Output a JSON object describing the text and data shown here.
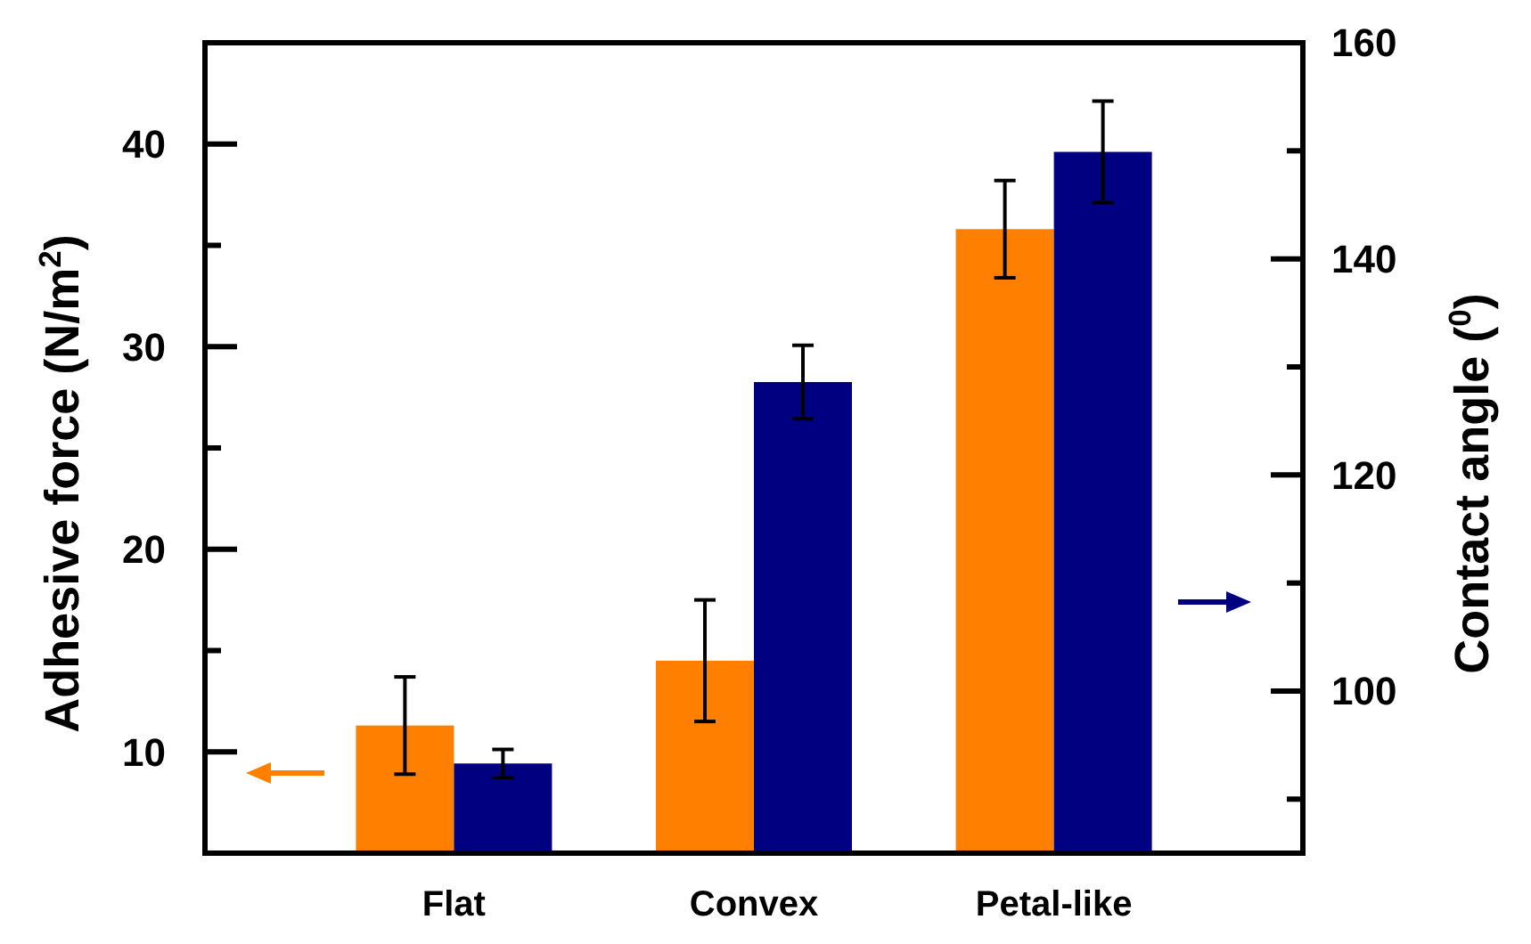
{
  "chart_data": {
    "type": "bar",
    "categories": [
      "Flat",
      "Convex",
      "Petal-like"
    ],
    "ylabel": "Adhesive force (N/m$^{2}$)",
    "y2label": "Contact angle ($^{0}$)",
    "series": [
      {
        "color": "#ff7f00",
        "values": [
          11.3,
          14.5,
          35.8
        ],
        "errors": [
          2.4,
          3,
          2.4
        ]
      },
      {
        "color": "#000080",
        "values": [
          93.3,
          128.6,
          149.9
        ],
        "errors": [
          1.3,
          3.4,
          4.7
        ],
        "axis": "y2"
      }
    ],
    "ylim": [
      5,
      45
    ],
    "yticks": [
      10,
      {
        "value": 15,
        "label": null
      },
      20,
      {
        "value": 25,
        "label": null
      },
      30,
      {
        "value": 35,
        "label": null
      },
      40
    ],
    "y2lim": [
      85,
      160
    ],
    "y2ticks": [
      {
        "value": 90,
        "label": null
      },
      100,
      {
        "value": 110,
        "label": null
      },
      120,
      {
        "value": 130,
        "label": null
      },
      140,
      {
        "value": 150,
        "label": null
      },
      160
    ],
    "grid": false
  }
}
